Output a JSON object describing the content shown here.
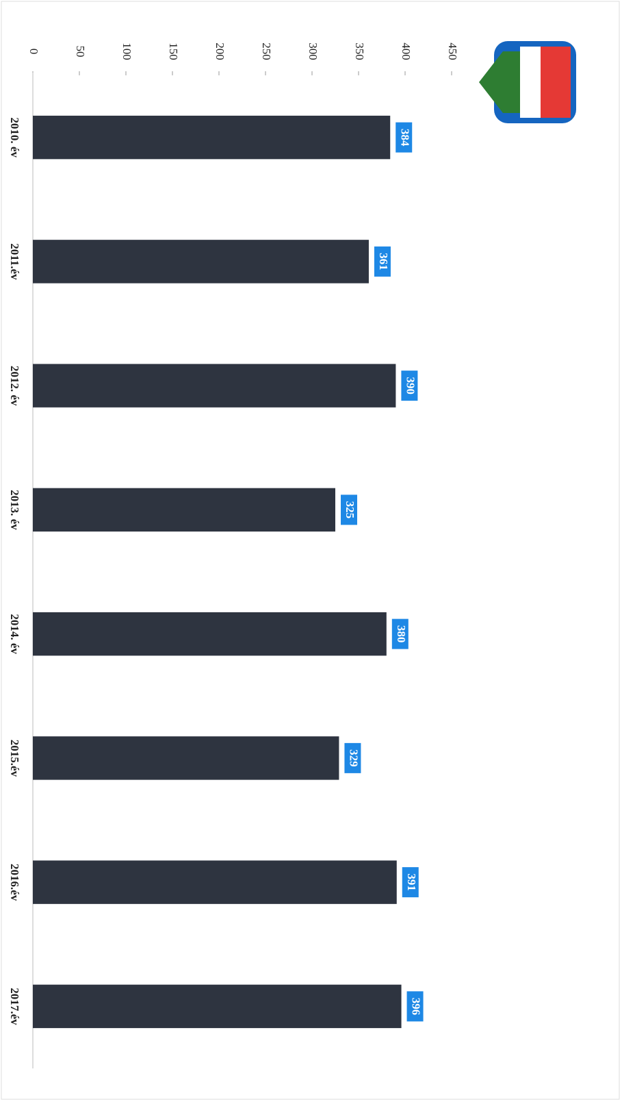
{
  "chart_data": {
    "type": "bar",
    "categories": [
      "2010. év",
      "2011.év",
      "2012. év",
      "2013. év",
      "2014. év",
      "2015.év",
      "2016.év",
      "2017.év"
    ],
    "values": [
      384,
      361,
      390,
      325,
      380,
      329,
      391,
      396
    ],
    "color": "#2e3440",
    "label_color": "#1e88e5",
    "ylim": [
      0,
      450
    ],
    "yticks": [
      0,
      50,
      100,
      150,
      200,
      250,
      300,
      350,
      400,
      450
    ]
  }
}
